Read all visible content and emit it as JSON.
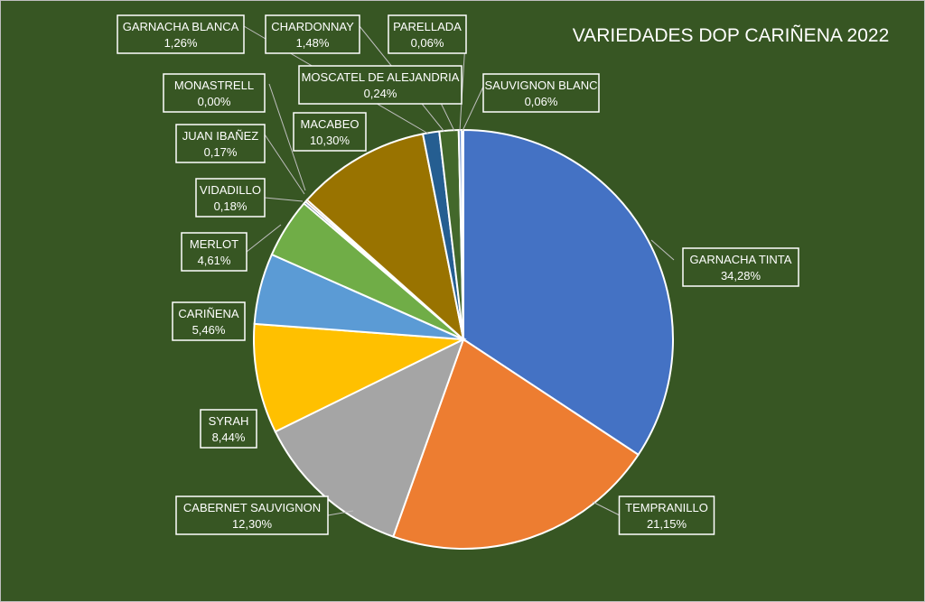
{
  "chart_data": {
    "type": "pie",
    "title": "VARIEDADES DOP CARIÑENA 2022",
    "background": "#375623",
    "slices": [
      {
        "name": "GARNACHA TINTA",
        "value": 34.28,
        "label": "34,28%",
        "color": "#4472C4"
      },
      {
        "name": "TEMPRANILLO",
        "value": 21.15,
        "label": "21,15%",
        "color": "#ED7D31"
      },
      {
        "name": "CABERNET SAUVIGNON",
        "value": 12.3,
        "label": "12,30%",
        "color": "#A5A5A5"
      },
      {
        "name": "SYRAH",
        "value": 8.44,
        "label": "8,44%",
        "color": "#FFC000"
      },
      {
        "name": "CARIÑENA",
        "value": 5.46,
        "label": "5,46%",
        "color": "#5B9BD5"
      },
      {
        "name": "MERLOT",
        "value": 4.61,
        "label": "4,61%",
        "color": "#70AD47"
      },
      {
        "name": "VIDADILLO",
        "value": 0.18,
        "label": "0,18%",
        "color": "#264478"
      },
      {
        "name": "JUAN IBAÑEZ",
        "value": 0.17,
        "label": "0,17%",
        "color": "#9E480E"
      },
      {
        "name": "MONASTRELL",
        "value": 0.0,
        "label": "0,00%",
        "color": "#636363"
      },
      {
        "name": "MACABEO",
        "value": 10.3,
        "label": "10,30%",
        "color": "#997300"
      },
      {
        "name": "GARNACHA BLANCA",
        "value": 1.26,
        "label": "1,26%",
        "color": "#255E91"
      },
      {
        "name": "CHARDONNAY",
        "value": 1.48,
        "label": "1,48%",
        "color": "#43682B"
      },
      {
        "name": "MOSCATEL DE ALEJANDRIA",
        "value": 0.24,
        "label": "0,24%",
        "color": "#698ED0"
      },
      {
        "name": "PARELLADA",
        "value": 0.06,
        "label": "0,06%",
        "color": "#F1975A"
      },
      {
        "name": "SAUVIGNON BLANC",
        "value": 0.06,
        "label": "0,06%",
        "color": "#B7B7B7"
      }
    ]
  }
}
